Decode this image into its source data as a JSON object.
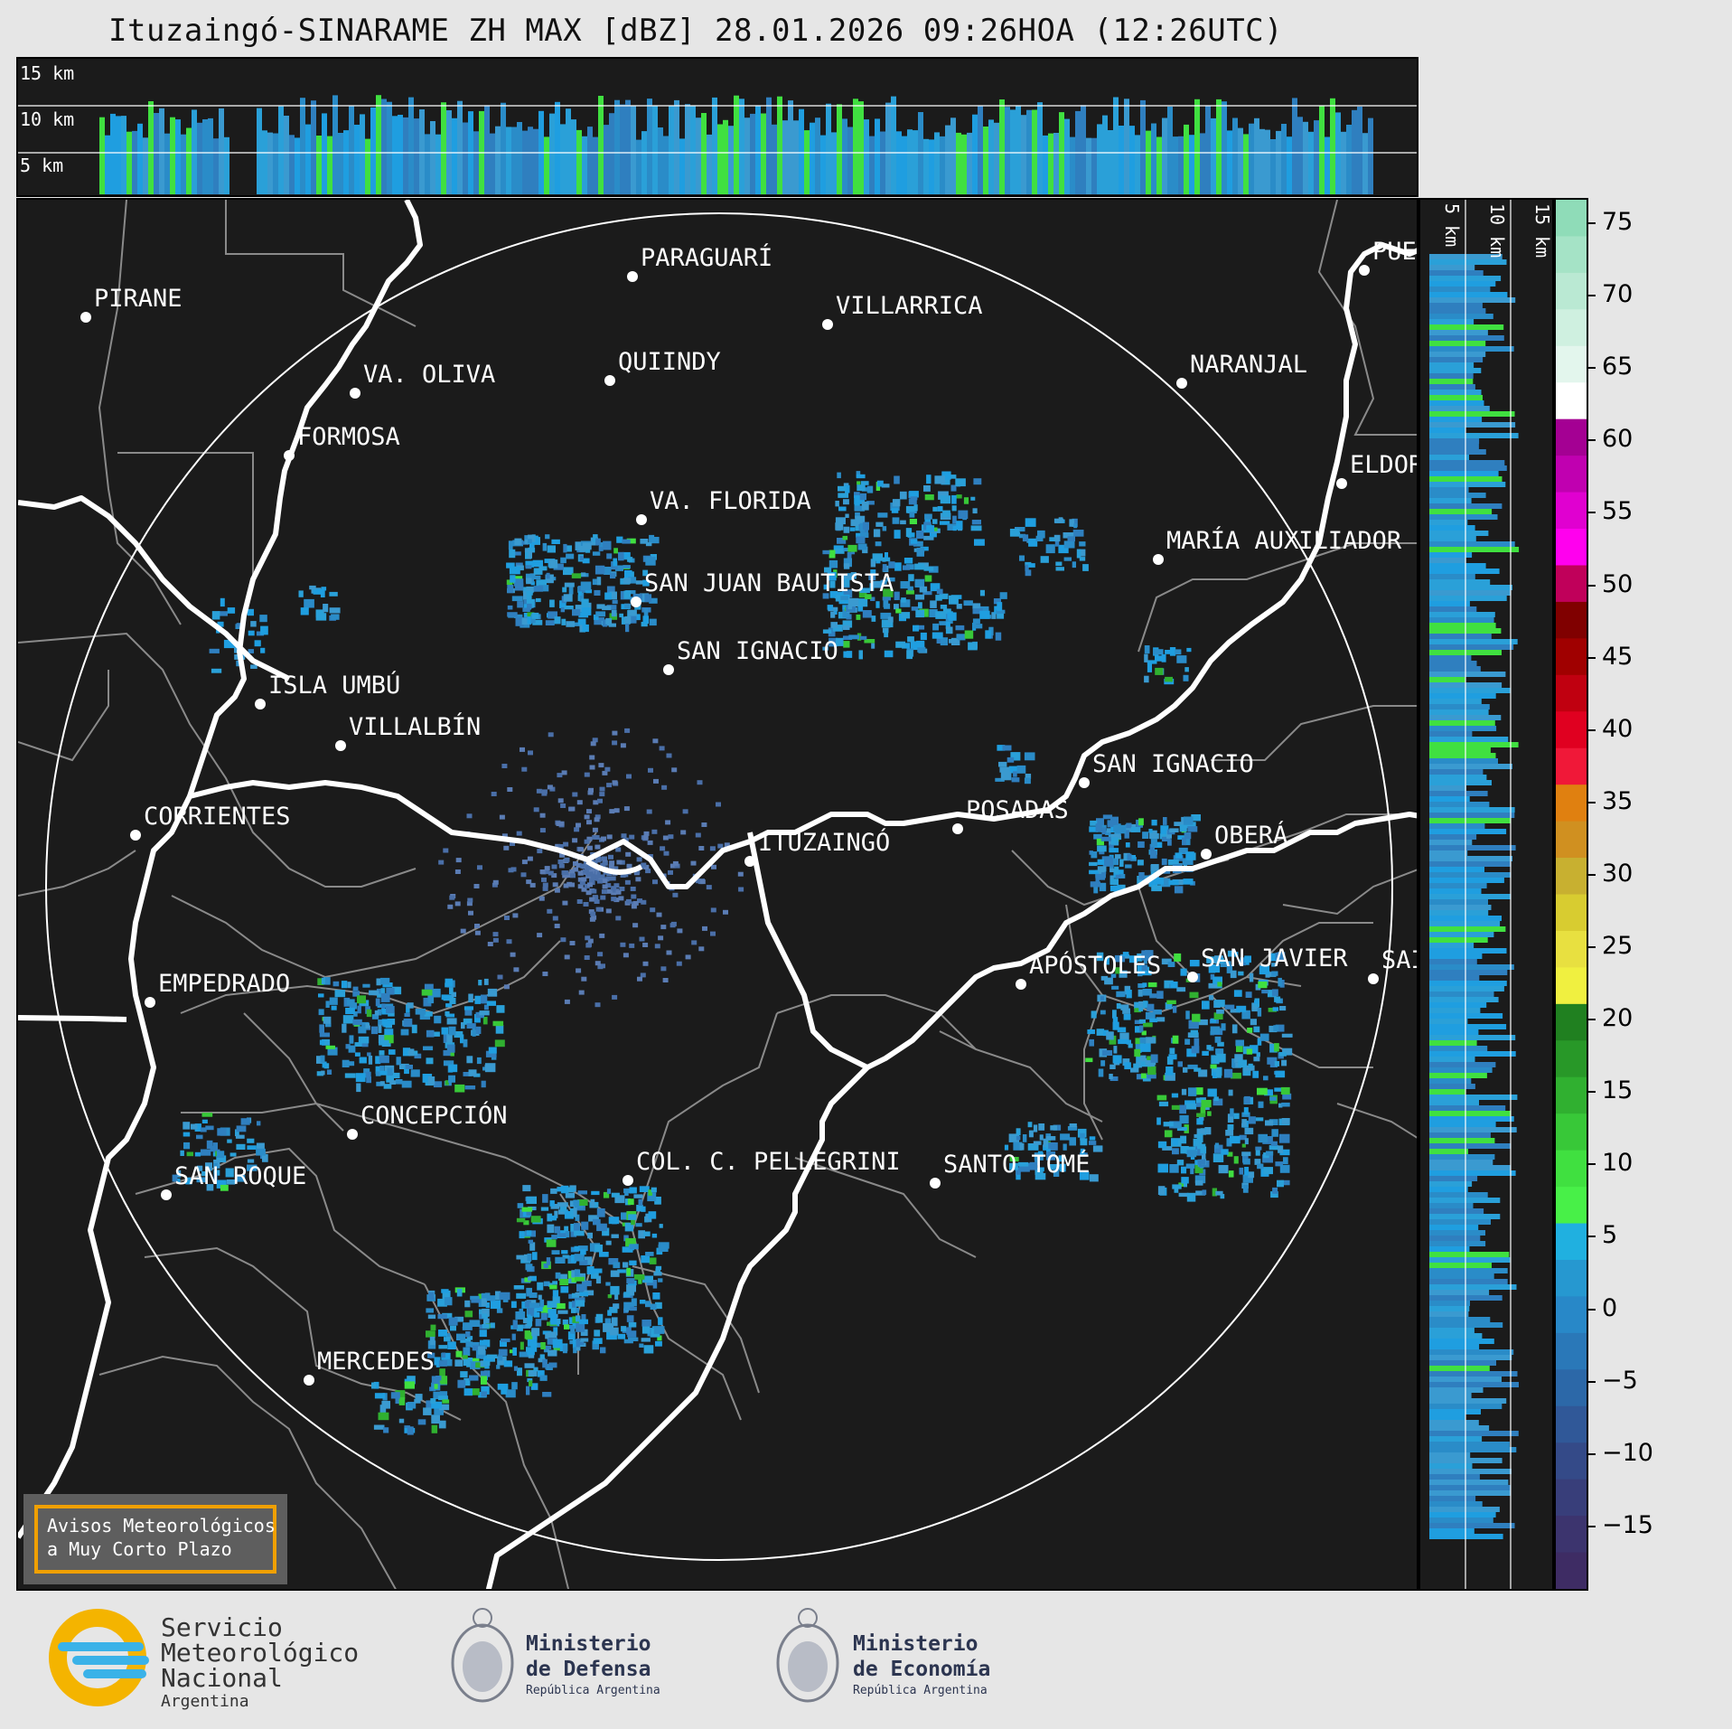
{
  "title": "Ituzaingó-SINARAME ZH MAX [dBZ] 28.01.2026 09:26HOA (12:26UTC)",
  "top_profile": {
    "levels": [
      "15 km",
      "10 km",
      "5 km"
    ]
  },
  "right_profile": {
    "levels": [
      "5 km",
      "10 km",
      "15 km"
    ]
  },
  "colorbar": {
    "ticks": [
      "75",
      "70",
      "65",
      "60",
      "55",
      "50",
      "45",
      "40",
      "35",
      "30",
      "25",
      "20",
      "15",
      "10",
      "5",
      "0",
      "−5",
      "−10",
      "−15"
    ],
    "colors": [
      "#8fdcb8",
      "#a5e3c6",
      "#bae9d3",
      "#cff0e0",
      "#e3f6ed",
      "#ffffff",
      "#a40093",
      "#c000b0",
      "#e000d0",
      "#ff00ee",
      "#c0005a",
      "#800000",
      "#a00000",
      "#c00010",
      "#e00020",
      "#f01838",
      "#e08010",
      "#d09020",
      "#c8b030",
      "#d8cc30",
      "#e8e040",
      "#f0f040",
      "#208020",
      "#289828",
      "#30b030",
      "#38c838",
      "#40e040",
      "#48f048",
      "#20b0e0",
      "#2698d0",
      "#2888c8",
      "#2a78b8",
      "#2c68a8",
      "#305898",
      "#344a88",
      "#383e7a",
      "#3c346e",
      "#3e2c64"
    ],
    "accent_low": "#3e2c64",
    "accent_high": "#8fdcb8"
  },
  "cities": [
    {
      "name": "PARAGUARÍ"
    },
    {
      "name": "PIRANE"
    },
    {
      "name": "VILLARRICA"
    },
    {
      "name": "QUIINDY"
    },
    {
      "name": "VA. OLIVA"
    },
    {
      "name": "NARANJAL"
    },
    {
      "name": "FORMOSA"
    },
    {
      "name": "VA. FLORIDA"
    },
    {
      "name": "ELDOR"
    },
    {
      "name": "MARÍA AUXILIADOR"
    },
    {
      "name": "SAN JUAN BAUTISTA"
    },
    {
      "name": "SAN IGNACIO"
    },
    {
      "name": "ISLA UMBÚ"
    },
    {
      "name": "VILLALBÍN"
    },
    {
      "name": "SAN IGNACIO"
    },
    {
      "name": "POSADAS"
    },
    {
      "name": "CORRIENTES"
    },
    {
      "name": "ITUZAINGÓ"
    },
    {
      "name": "OBERÁ"
    },
    {
      "name": "APÓSTOLES"
    },
    {
      "name": "SAN JAVIER"
    },
    {
      "name": "SAI"
    },
    {
      "name": "EMPEDRADO"
    },
    {
      "name": "CONCEPCIÓN"
    },
    {
      "name": "COL. C. PELLEGRINI"
    },
    {
      "name": "SANTO TOMÉ"
    },
    {
      "name": "SAN ROQUE"
    },
    {
      "name": "MERCEDES"
    },
    {
      "name": "PUEI"
    }
  ],
  "warning_box": {
    "line1": "Avisos Meteorológicos",
    "line2": "a Muy Corto Plazo",
    "border_color": "#f0a000"
  },
  "logos": {
    "smn": {
      "line1": "Servicio",
      "line2": "Meteorológico",
      "line3": "Nacional",
      "line4": "Argentina"
    },
    "defensa": {
      "line1": "Ministerio",
      "line2": "de Defensa",
      "line3": "República Argentina"
    },
    "economia": {
      "line1": "Ministerio",
      "line2": "de Economía",
      "line3": "República Argentina"
    }
  }
}
